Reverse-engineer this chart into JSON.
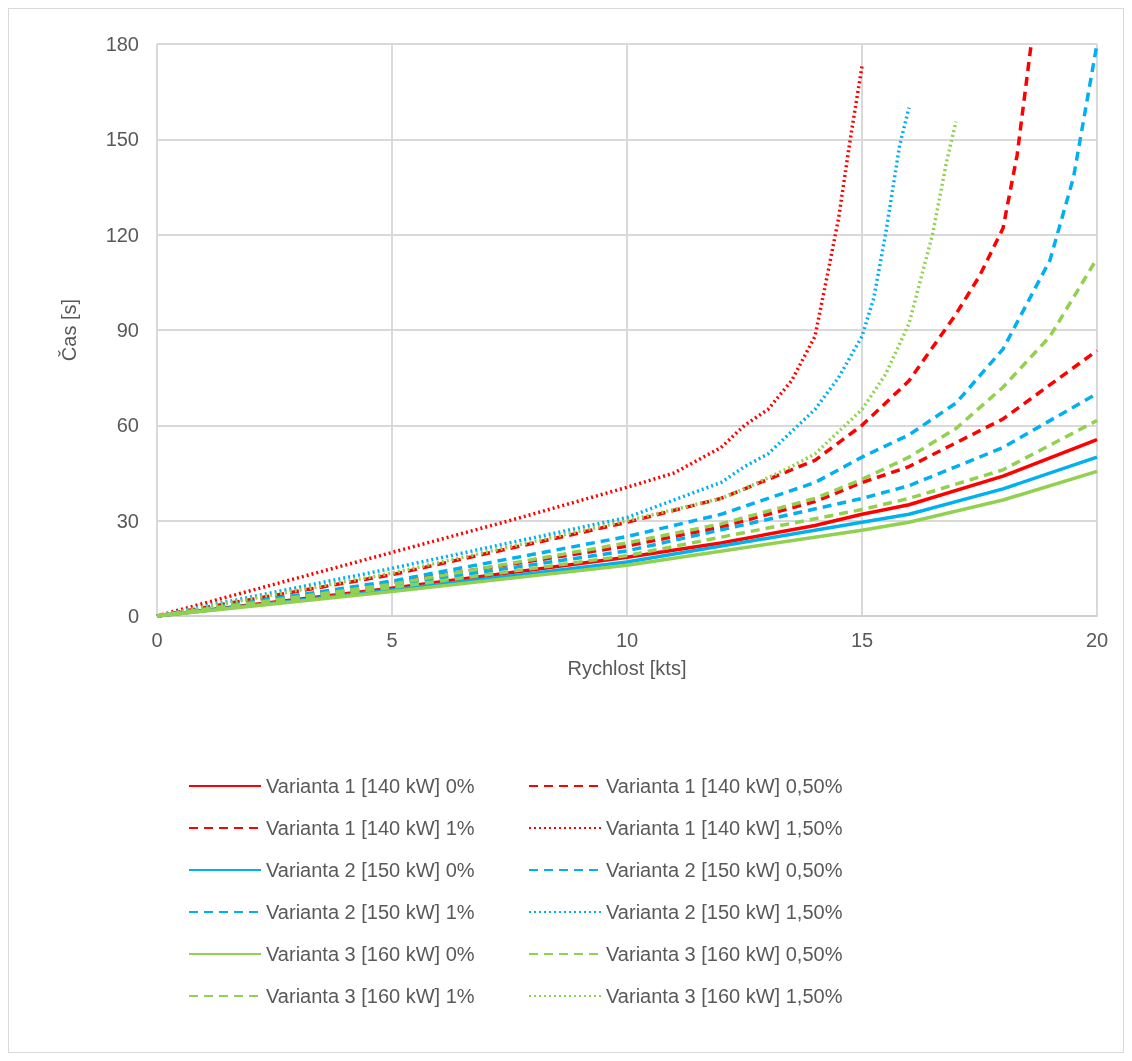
{
  "chart_data": {
    "type": "line",
    "xlabel": "Rychlost [kts]",
    "ylabel": "Čas [s]",
    "xlim": [
      0,
      20
    ],
    "xticks": [
      0,
      5,
      10,
      15,
      20
    ],
    "ylim": [
      0,
      180
    ],
    "yticks": [
      0,
      30,
      60,
      90,
      120,
      150,
      180
    ],
    "grid": true,
    "legend": "bottom",
    "marker": "none",
    "series": [
      {
        "name": "Varianta 1 [140 kW] 0%",
        "color": "#ff0000",
        "line_style": "solid",
        "x": [
          0,
          5,
          10,
          12,
          14,
          15,
          16,
          18,
          20
        ],
        "values": [
          0,
          8.7,
          18.5,
          23,
          28.5,
          32,
          35,
          44,
          55.5
        ]
      },
      {
        "name": "Varianta 1 [140 kW] 0,50%",
        "color": "#ff0000",
        "line_style": "dashed",
        "x": [
          0,
          5,
          10,
          12,
          14,
          15,
          16,
          18,
          20
        ],
        "values": [
          0,
          10.5,
          22,
          28,
          36,
          42,
          47,
          62,
          83.5
        ]
      },
      {
        "name": "Varianta 1 [140 kW] 1%",
        "color": "#ff0000",
        "line_style": "dashed",
        "x": [
          0,
          5,
          10,
          12,
          14,
          15,
          16,
          17,
          17.5,
          18,
          18.3,
          18.6
        ],
        "values": [
          0,
          13,
          29.5,
          37,
          49,
          60,
          74,
          95,
          107,
          122,
          145,
          180
        ]
      },
      {
        "name": "Varianta 1 [140 kW] 1,50%",
        "color": "#ff0000",
        "line_style": "dotted",
        "x": [
          0,
          2.5,
          5,
          7.5,
          10,
          11,
          12,
          12.5,
          13,
          13.5,
          14,
          14.3,
          14.5,
          14.75,
          15
        ],
        "values": [
          0,
          10,
          20,
          30,
          40.5,
          45,
          53,
          60,
          65,
          74,
          88,
          110,
          125,
          150,
          173
        ]
      },
      {
        "name": "Varianta 2 [150 kW] 0%",
        "color": "#00b0f0",
        "line_style": "solid",
        "x": [
          0,
          5,
          10,
          15,
          16,
          18,
          20
        ],
        "values": [
          0,
          8.2,
          17,
          29.5,
          32,
          40,
          50
        ]
      },
      {
        "name": "Varianta 2 [150 kW] 0,50%",
        "color": "#00b0f0",
        "line_style": "dashed",
        "x": [
          0,
          5,
          10,
          15,
          16,
          18,
          20
        ],
        "values": [
          0,
          9.7,
          20.5,
          37,
          41,
          53,
          70
        ]
      },
      {
        "name": "Varianta 2 [150 kW] 1%",
        "color": "#00b0f0",
        "line_style": "dashed",
        "x": [
          0,
          5,
          10,
          12,
          14,
          15,
          16,
          17,
          18,
          19,
          19.5,
          20
        ],
        "values": [
          0,
          11,
          25,
          32,
          42,
          50,
          57,
          67,
          84,
          112,
          138,
          180
        ]
      },
      {
        "name": "Varianta 2 [150 kW] 1,50%",
        "color": "#00b0f0",
        "line_style": "dotted",
        "x": [
          0,
          5,
          10,
          12,
          12.5,
          13,
          14,
          14.5,
          15,
          15.25,
          15.5,
          15.8,
          16
        ],
        "values": [
          0,
          15,
          31,
          42,
          47,
          51,
          65,
          75,
          88,
          100,
          120,
          148,
          160
        ]
      },
      {
        "name": "Varianta 3 [160 kW] 0%",
        "color": "#92d050",
        "line_style": "solid",
        "x": [
          0,
          5,
          10,
          15,
          16,
          18,
          20
        ],
        "values": [
          0,
          7.7,
          16,
          27,
          29.5,
          36.5,
          45.5
        ]
      },
      {
        "name": "Varianta 3 [160 kW] 0,50%",
        "color": "#92d050",
        "line_style": "dashed",
        "x": [
          0,
          5,
          10,
          15,
          16,
          18,
          20
        ],
        "values": [
          0,
          9,
          19,
          33.5,
          37,
          46,
          61.5
        ]
      },
      {
        "name": "Varianta 3 [160 kW] 1%",
        "color": "#92d050",
        "line_style": "dashed",
        "x": [
          0,
          5,
          10,
          12,
          14,
          15,
          16,
          17,
          18,
          19,
          20
        ],
        "values": [
          0,
          10,
          23,
          29,
          37,
          43,
          50,
          59,
          72,
          88,
          112.5
        ]
      },
      {
        "name": "Varianta 3 [160 kW] 1,50%",
        "color": "#92d050",
        "line_style": "dotted",
        "x": [
          0,
          5,
          10,
          12,
          12.5,
          13.5,
          14,
          15,
          15.5,
          16,
          16.5,
          16.8,
          17
        ],
        "values": [
          0,
          13.5,
          30,
          37,
          40,
          47,
          51,
          65,
          76,
          92,
          120,
          143,
          155.6
        ]
      }
    ]
  }
}
